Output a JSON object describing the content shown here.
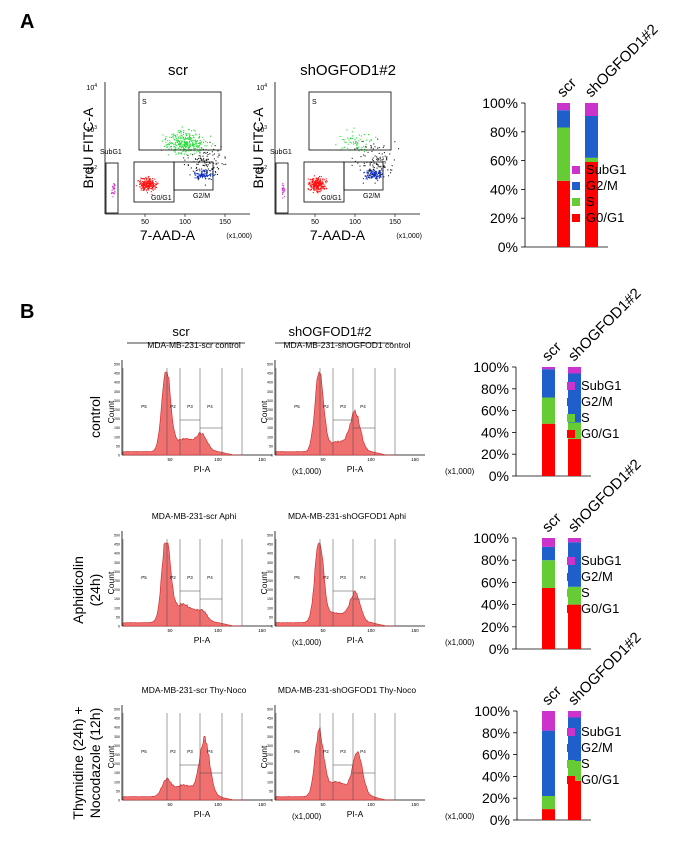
{
  "figure": {
    "panel_a_label": "A",
    "panel_b_label": "B",
    "group_scr": "scr",
    "group_kd": "shOGFOD1#2",
    "multiplier": "(x1,000)",
    "colors": {
      "SubG1": "#cc33cc",
      "G2/M": "#1f5fcc",
      "S": "#66cc33",
      "G0/G1": "#ff0000",
      "hist_fill": "#f07070"
    }
  },
  "panel_a": {
    "ylabel": "BrdU FITC-A",
    "xlabel": "7-AAD-A",
    "x_ticks": [
      "50",
      "100",
      "150"
    ],
    "y_ticks": [
      "10",
      "10",
      "10"
    ],
    "y_exps": [
      "2",
      "3",
      "4"
    ],
    "gates": [
      "S",
      "SubG1",
      "G0/G1",
      "G2/M"
    ]
  },
  "panel_b": {
    "hist_titles": {
      "control": [
        "MDA-MB-231-scr control",
        "MDA-MB-231-shOGFOD1 control"
      ],
      "aphi": [
        "MDA-MB-231-scr Aphi",
        "MDA-MB-231-shOGFOD1 Aphi"
      ],
      "thynoco": [
        "MDA-MB-231-scr Thy-Noco",
        "MDA-MB-231-shOGFOD1 Thy-Noco"
      ]
    },
    "row_labels": {
      "control": [
        "control"
      ],
      "aphi": [
        "Aphidicolin",
        "(24h)"
      ],
      "thynoco": [
        "Thymidine (24h) +",
        "Nocodazole (12h)"
      ]
    },
    "hist_xlabel": "PI-A",
    "hist_ylabel": "Count",
    "hist_x_ticks": [
      "50",
      "100",
      "150"
    ],
    "hist_y_ticks": [
      "500",
      "450",
      "400",
      "350",
      "300",
      "250",
      "200",
      "150",
      "100",
      "50",
      "0"
    ],
    "gate_labels": [
      "P5",
      "P2",
      "P3",
      "P4"
    ]
  },
  "chart_data": [
    {
      "type": "bar",
      "stacked": true,
      "panel": "A",
      "categories": [
        "scr",
        "shOGFOD1#2"
      ],
      "y_ticks": [
        "0%",
        "20%",
        "40%",
        "60%",
        "80%",
        "100%"
      ],
      "ylim": [
        0,
        100
      ],
      "legend": [
        "SubG1",
        "G2/M",
        "S",
        "G0/G1"
      ],
      "series": [
        {
          "name": "G0/G1",
          "values": [
            46,
            59
          ]
        },
        {
          "name": "S",
          "values": [
            37,
            3
          ]
        },
        {
          "name": "G2/M",
          "values": [
            12,
            29
          ]
        },
        {
          "name": "SubG1",
          "values": [
            5,
            9
          ]
        }
      ]
    },
    {
      "type": "bar",
      "stacked": true,
      "panel": "B",
      "condition": "control",
      "categories": [
        "scr",
        "shOGFOD1#2"
      ],
      "y_ticks": [
        "0%",
        "20%",
        "40%",
        "60%",
        "80%",
        "100%"
      ],
      "ylim": [
        0,
        100
      ],
      "legend": [
        "SubG1",
        "G2/M",
        "S",
        "G0/G1"
      ],
      "series": [
        {
          "name": "G0/G1",
          "values": [
            48,
            34
          ]
        },
        {
          "name": "S",
          "values": [
            24,
            15
          ]
        },
        {
          "name": "G2/M",
          "values": [
            26,
            45
          ]
        },
        {
          "name": "SubG1",
          "values": [
            2,
            6
          ]
        }
      ]
    },
    {
      "type": "bar",
      "stacked": true,
      "panel": "B",
      "condition": "Aphidicolin (24h)",
      "categories": [
        "scr",
        "shOGFOD1#2"
      ],
      "y_ticks": [
        "0%",
        "20%",
        "40%",
        "60%",
        "80%",
        "100%"
      ],
      "ylim": [
        0,
        100
      ],
      "legend": [
        "SubG1",
        "G2/M",
        "S",
        "G0/G1"
      ],
      "series": [
        {
          "name": "G0/G1",
          "values": [
            55,
            40
          ]
        },
        {
          "name": "S",
          "values": [
            25,
            16
          ]
        },
        {
          "name": "G2/M",
          "values": [
            12,
            40
          ]
        },
        {
          "name": "SubG1",
          "values": [
            8,
            4
          ]
        }
      ]
    },
    {
      "type": "bar",
      "stacked": true,
      "panel": "B",
      "condition": "Thymidine (24h) + Nocodazole (12h)",
      "categories": [
        "scr",
        "shOGFOD1#2"
      ],
      "y_ticks": [
        "0%",
        "20%",
        "40%",
        "60%",
        "80%",
        "100%"
      ],
      "ylim": [
        0,
        100
      ],
      "legend": [
        "SubG1",
        "G2/M",
        "S",
        "G0/G1"
      ],
      "series": [
        {
          "name": "G0/G1",
          "values": [
            10,
            36
          ]
        },
        {
          "name": "S",
          "values": [
            12,
            18
          ]
        },
        {
          "name": "G2/M",
          "values": [
            60,
            40
          ]
        },
        {
          "name": "SubG1",
          "values": [
            18,
            6
          ]
        }
      ]
    }
  ]
}
